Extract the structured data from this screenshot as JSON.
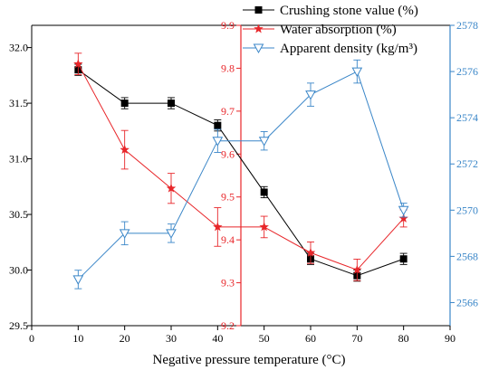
{
  "chart_data": {
    "type": "line",
    "xlabel": "Negative pressure temperature (°C)",
    "x_ticks": [
      "0",
      "10",
      "20",
      "30",
      "40",
      "50",
      "60",
      "70",
      "80",
      "90"
    ],
    "xlim": [
      0,
      90
    ],
    "axes": {
      "left": {
        "ylim": [
          29.5,
          32.2
        ],
        "ticks": [
          "29.5",
          "30.0",
          "30.5",
          "31.0",
          "31.5",
          "32.0"
        ],
        "color": "#000000"
      },
      "mid": {
        "ylim": [
          9.2,
          9.9
        ],
        "ticks": [
          "9.2",
          "9.3",
          "9.4",
          "9.5",
          "9.6",
          "9.7",
          "9.8",
          "9.9"
        ],
        "color": "#e8262a",
        "position_x": 45
      },
      "right": {
        "ylim": [
          2565,
          2578
        ],
        "ticks": [
          "2566",
          "2568",
          "2570",
          "2572",
          "2574",
          "2576",
          "2578"
        ],
        "color": "#3a86c8"
      }
    },
    "series": [
      {
        "name": "Crushing stone value (%)",
        "axis": "left",
        "color": "#000000",
        "marker": "square",
        "x": [
          10,
          20,
          30,
          40,
          50,
          60,
          70,
          80
        ],
        "y": [
          31.8,
          31.5,
          31.5,
          31.3,
          30.7,
          30.1,
          29.95,
          30.1
        ],
        "err": [
          0.05,
          0.05,
          0.05,
          0.05,
          0.05,
          0.05,
          0.05,
          0.05
        ]
      },
      {
        "name": "Water absorption (%)",
        "axis": "mid",
        "color": "#e8262a",
        "marker": "star",
        "x": [
          10,
          20,
          30,
          40,
          50,
          60,
          70,
          80
        ],
        "y": [
          9.81,
          9.61,
          9.52,
          9.43,
          9.43,
          9.37,
          9.33,
          9.45
        ],
        "err": [
          0.025,
          0.045,
          0.035,
          0.045,
          0.025,
          0.025,
          0.025,
          0.02
        ]
      },
      {
        "name": "Apparent density (kg/m³)",
        "axis": "right",
        "color": "#3a86c8",
        "marker": "triangle-down",
        "x": [
          10,
          20,
          30,
          40,
          50,
          60,
          70,
          80
        ],
        "y": [
          2567,
          2569,
          2569,
          2573,
          2573,
          2575,
          2576,
          2570
        ],
        "err": [
          0.4,
          0.5,
          0.4,
          0.5,
          0.4,
          0.5,
          0.5,
          0.3
        ]
      }
    ],
    "legend": {
      "position": "top-right"
    }
  }
}
